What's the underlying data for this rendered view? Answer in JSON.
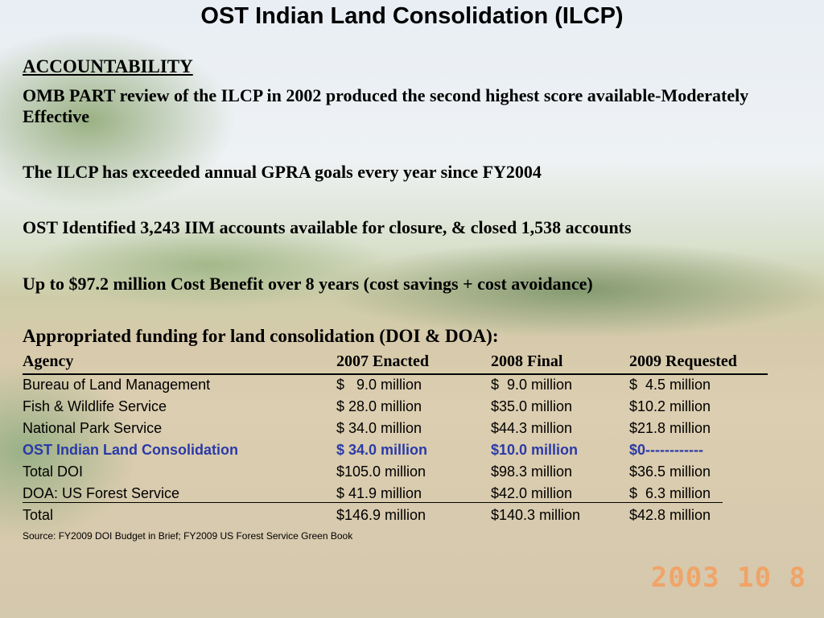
{
  "title": "OST Indian Land Consolidation (ILCP)",
  "accountability_heading": "ACCOUNTABILITY",
  "paragraphs": [
    "OMB PART review of the ILCP in 2002 produced the second highest score available-Moderately Effective",
    "The ILCP has exceeded annual GPRA goals every year since FY2004",
    "OST Identified 3,243 IIM accounts available for closure, & closed 1,538 accounts",
    "Up to $97.2 million Cost Benefit over 8 years (cost savings + cost avoidance)"
  ],
  "funding_heading": "Appropriated funding for land consolidation (DOI & DOA):",
  "table": {
    "headers": [
      "Agency",
      "2007 Enacted",
      "2008 Final",
      "2009 Requested"
    ],
    "rows": [
      [
        "Bureau of Land Management",
        "$   9.0 million",
        "$  9.0 million",
        "$  4.5 million"
      ],
      [
        "Fish & Wildlife Service",
        "$ 28.0 million",
        "$35.0 million",
        "$10.2 million"
      ],
      [
        "National Park Service",
        "$ 34.0 million",
        "$44.3 million",
        "$21.8 million"
      ],
      [
        "OST Indian Land Consolidation",
        "$ 34.0 million",
        "$10.0 million",
        "$0------------"
      ],
      [
        "Total DOI",
        "$105.0 million",
        "$98.3 million",
        "$36.5 million"
      ],
      [
        "DOA: US Forest Service",
        "$ 41.9 million",
        "$42.0 million",
        "$  6.3 million"
      ],
      [
        "Total",
        "$146.9 million",
        "$140.3 million",
        "$42.8 million"
      ]
    ]
  },
  "source": "Source: FY2009 DOI Budget in Brief; FY2009 US Forest Service Green Book",
  "photo_date_stamp": "2003  10    8",
  "colors": {
    "highlight_row": "#2a3aa8",
    "date_stamp": "#f0a468"
  }
}
